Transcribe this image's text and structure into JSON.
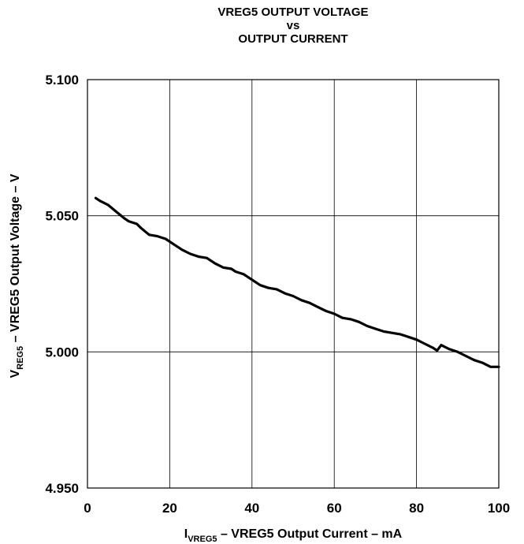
{
  "chart_data": {
    "type": "line",
    "title": [
      "VREG5 OUTPUT VOLTAGE",
      "vs",
      "OUTPUT CURRENT"
    ],
    "xlabel": {
      "main": "I",
      "sub": "VREG5",
      "rest": " – VREG5 Output Current – mA"
    },
    "ylabel": {
      "main": "V",
      "sub": "REG5",
      "rest": "  – VREG5 Output Voltage  – V"
    },
    "xlim": [
      0,
      100
    ],
    "ylim": [
      4.95,
      5.1
    ],
    "xticks": [
      0,
      20,
      40,
      60,
      80,
      100
    ],
    "xtick_labels": [
      "0",
      "20",
      "40",
      "60",
      "80",
      "100"
    ],
    "yticks": [
      4.95,
      5.0,
      5.05,
      5.1
    ],
    "ytick_labels": [
      "4.950",
      "5.000",
      "5.050",
      "5.100"
    ],
    "grid": true,
    "series": [
      {
        "color": "#000000",
        "x": [
          2,
          3,
          5,
          7,
          9,
          10,
          12,
          13,
          15,
          17,
          19,
          21,
          23,
          25,
          27,
          29,
          31,
          33,
          35,
          36,
          38,
          40,
          42,
          44,
          46,
          48,
          50,
          52,
          54,
          56,
          58,
          60,
          62,
          64,
          66,
          68,
          70,
          72,
          74,
          76,
          78,
          80,
          82,
          84,
          85,
          86,
          88,
          90,
          92,
          94,
          96,
          98,
          100
        ],
        "y": [
          5.0565,
          5.0555,
          5.054,
          5.0515,
          5.049,
          5.048,
          5.047,
          5.0455,
          5.043,
          5.0425,
          5.0415,
          5.0395,
          5.0375,
          5.036,
          5.035,
          5.0345,
          5.0325,
          5.031,
          5.0305,
          5.0295,
          5.0285,
          5.0265,
          5.0245,
          5.0235,
          5.023,
          5.0215,
          5.0205,
          5.019,
          5.018,
          5.0165,
          5.015,
          5.014,
          5.0125,
          5.012,
          5.011,
          5.0095,
          5.0085,
          5.0075,
          5.007,
          5.0065,
          5.0055,
          5.0045,
          5.003,
          5.0015,
          5.0005,
          5.0025,
          5.001,
          5.0,
          4.9985,
          4.997,
          4.996,
          4.9945,
          4.9945
        ]
      }
    ]
  }
}
